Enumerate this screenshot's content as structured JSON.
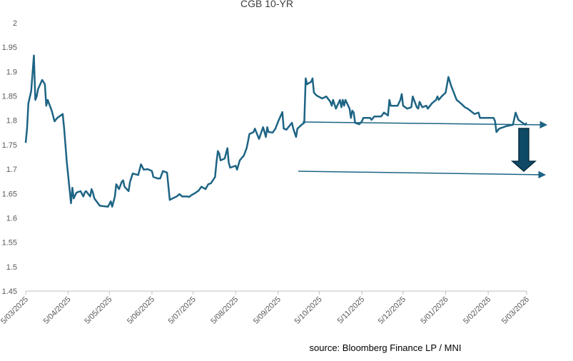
{
  "chart_data": {
    "type": "line",
    "title": "CGB 10-YR",
    "source": "source:  Bloomberg Finance LP / MNI",
    "color": "#1d6484",
    "x": [
      "2025-03-05",
      "2025-03-06",
      "2025-03-07",
      "2025-03-09",
      "2025-03-11",
      "2025-03-12",
      "2025-03-13",
      "2025-03-14",
      "2025-03-17",
      "2025-03-19",
      "2025-03-20",
      "2025-03-21",
      "2025-03-24",
      "2025-03-26",
      "2025-03-28",
      "2025-04-01",
      "2025-04-02",
      "2025-04-04",
      "2025-04-07",
      "2025-04-08",
      "2025-04-09",
      "2025-04-11",
      "2025-04-14",
      "2025-04-16",
      "2025-04-17",
      "2025-04-18",
      "2025-04-21",
      "2025-04-22",
      "2025-04-23",
      "2025-04-24",
      "2025-04-28",
      "2025-05-04",
      "2025-05-06",
      "2025-05-07",
      "2025-05-09",
      "2025-05-10",
      "2025-05-12",
      "2025-05-14",
      "2025-05-15",
      "2025-05-16",
      "2025-05-19",
      "2025-05-20",
      "2025-05-22",
      "2025-05-26",
      "2025-05-28",
      "2025-05-30",
      "2025-06-02",
      "2025-06-05",
      "2025-06-06",
      "2025-06-09",
      "2025-06-11",
      "2025-06-13",
      "2025-06-16",
      "2025-06-18",
      "2025-06-20",
      "2025-06-23",
      "2025-06-25",
      "2025-06-27",
      "2025-07-01",
      "2025-07-02",
      "2025-07-04",
      "2025-07-07",
      "2025-07-09",
      "2025-07-11",
      "2025-07-14",
      "2025-07-16",
      "2025-07-18",
      "2025-07-21",
      "2025-07-22",
      "2025-07-23",
      "2025-07-24",
      "2025-07-25",
      "2025-07-28",
      "2025-07-30",
      "2025-07-31",
      "2025-08-01",
      "2025-08-05",
      "2025-08-06",
      "2025-08-08",
      "2025-08-11",
      "2025-08-13",
      "2025-08-14",
      "2025-08-15",
      "2025-08-18",
      "2025-08-19",
      "2025-08-20",
      "2025-08-22",
      "2025-08-25",
      "2025-08-26",
      "2025-08-27",
      "2025-08-28",
      "2025-08-29",
      "2025-09-01",
      "2025-09-03",
      "2025-09-05",
      "2025-09-08",
      "2025-09-09",
      "2025-09-11",
      "2025-09-15",
      "2025-09-16",
      "2025-09-18",
      "2025-09-19",
      "2025-09-22",
      "2025-09-24",
      "2025-09-25",
      "2025-09-26",
      "2025-09-29",
      "2025-09-30",
      "2025-10-01",
      "2025-10-03",
      "2025-10-07",
      "2025-10-10",
      "2025-10-13",
      "2025-10-14",
      "2025-10-15",
      "2025-10-17",
      "2025-10-20",
      "2025-10-21",
      "2025-10-22",
      "2025-10-23",
      "2025-10-24",
      "2025-10-27",
      "2025-10-28",
      "2025-10-29",
      "2025-10-30",
      "2025-10-31",
      "2025-11-03",
      "2025-11-05",
      "2025-11-06",
      "2025-11-11",
      "2025-11-12",
      "2025-11-14",
      "2025-11-19",
      "2025-11-21",
      "2025-11-24",
      "2025-11-25",
      "2025-11-26",
      "2025-12-01",
      "2025-12-03",
      "2025-12-04",
      "2025-12-05",
      "2025-12-08",
      "2025-12-11",
      "2025-12-12",
      "2025-12-15",
      "2025-12-16",
      "2025-12-17",
      "2025-12-19",
      "2025-12-22",
      "2025-12-23",
      "2025-12-26",
      "2025-12-29",
      "2025-12-30",
      "2025-12-31",
      "2026-01-02",
      "2026-01-05",
      "2026-01-07",
      "2026-01-09",
      "2026-01-13",
      "2026-01-16",
      "2026-01-19",
      "2026-01-21",
      "2026-01-23",
      "2026-01-26",
      "2026-01-29",
      "2026-01-30",
      "2026-02-04",
      "2026-02-09",
      "2026-02-10",
      "2026-02-11",
      "2026-02-13",
      "2026-02-18",
      "2026-02-23",
      "2026-02-25",
      "2026-02-27",
      "2026-03-02",
      "2026-03-04",
      "2026-03-05"
    ],
    "values": [
      1.754,
      1.783,
      1.835,
      1.86,
      1.933,
      1.842,
      1.849,
      1.864,
      1.883,
      1.874,
      1.83,
      1.842,
      1.82,
      1.798,
      1.805,
      1.813,
      1.783,
      1.713,
      1.63,
      1.662,
      1.64,
      1.652,
      1.655,
      1.644,
      1.652,
      1.655,
      1.644,
      1.659,
      1.652,
      1.64,
      1.625,
      1.623,
      1.634,
      1.623,
      1.644,
      1.669,
      1.659,
      1.674,
      1.677,
      1.664,
      1.655,
      1.674,
      1.691,
      1.688,
      1.71,
      1.699,
      1.7,
      1.696,
      1.684,
      1.681,
      1.681,
      1.696,
      1.693,
      1.637,
      1.64,
      1.644,
      1.649,
      1.644,
      1.644,
      1.643,
      1.647,
      1.652,
      1.656,
      1.664,
      1.659,
      1.669,
      1.671,
      1.684,
      1.713,
      1.737,
      1.732,
      1.718,
      1.722,
      1.743,
      1.713,
      1.703,
      1.707,
      1.699,
      1.718,
      1.728,
      1.743,
      1.757,
      1.772,
      1.776,
      1.783,
      1.776,
      1.762,
      1.786,
      1.776,
      1.766,
      1.786,
      1.776,
      1.775,
      1.783,
      1.798,
      1.817,
      1.783,
      1.781,
      1.795,
      1.783,
      1.766,
      1.783,
      1.791,
      1.795,
      1.886,
      1.874,
      1.879,
      1.886,
      1.857,
      1.851,
      1.845,
      1.849,
      1.838,
      1.83,
      1.842,
      1.824,
      1.842,
      1.827,
      1.842,
      1.83,
      1.842,
      1.824,
      1.805,
      1.82,
      1.816,
      1.795,
      1.792,
      1.798,
      1.805,
      1.805,
      1.801,
      1.808,
      1.808,
      1.816,
      1.81,
      1.842,
      1.83,
      1.83,
      1.842,
      1.854,
      1.83,
      1.824,
      1.827,
      1.849,
      1.827,
      1.824,
      1.838,
      1.827,
      1.83,
      1.824,
      1.835,
      1.842,
      1.849,
      1.842,
      1.849,
      1.857,
      1.889,
      1.871,
      1.842,
      1.835,
      1.827,
      1.824,
      1.82,
      1.813,
      1.816,
      1.805,
      1.805,
      1.805,
      1.798,
      1.776,
      1.783,
      1.788,
      1.791,
      1.816,
      1.801,
      1.795,
      1.791,
      1.795
    ],
    "xlim": [
      "2025-03-05",
      "2026-03-05"
    ],
    "xticks": [
      {
        "value": "2025-03-05",
        "label": "5/03/2025"
      },
      {
        "value": "2025-04-05",
        "label": "5/04/2025"
      },
      {
        "value": "2025-05-05",
        "label": "5/05/2025"
      },
      {
        "value": "2025-06-05",
        "label": "5/06/2025"
      },
      {
        "value": "2025-07-05",
        "label": "5/07/2025"
      },
      {
        "value": "2025-08-05",
        "label": "5/08/2025"
      },
      {
        "value": "2025-09-05",
        "label": "5/09/2025"
      },
      {
        "value": "2025-10-05",
        "label": "5/10/2025"
      },
      {
        "value": "2025-11-05",
        "label": "5/11/2025"
      },
      {
        "value": "2025-12-05",
        "label": "5/12/2025"
      },
      {
        "value": "2026-01-05",
        "label": "5/01/2026"
      },
      {
        "value": "2026-02-05",
        "label": "5/02/2026"
      },
      {
        "value": "2026-03-05",
        "label": "5/03/2026"
      }
    ],
    "ylim": [
      1.45,
      2
    ],
    "yticks": [
      1.45,
      1.5,
      1.55,
      1.6,
      1.65,
      1.7,
      1.75,
      1.8,
      1.85,
      1.9,
      1.95,
      2
    ],
    "grid": false
  }
}
